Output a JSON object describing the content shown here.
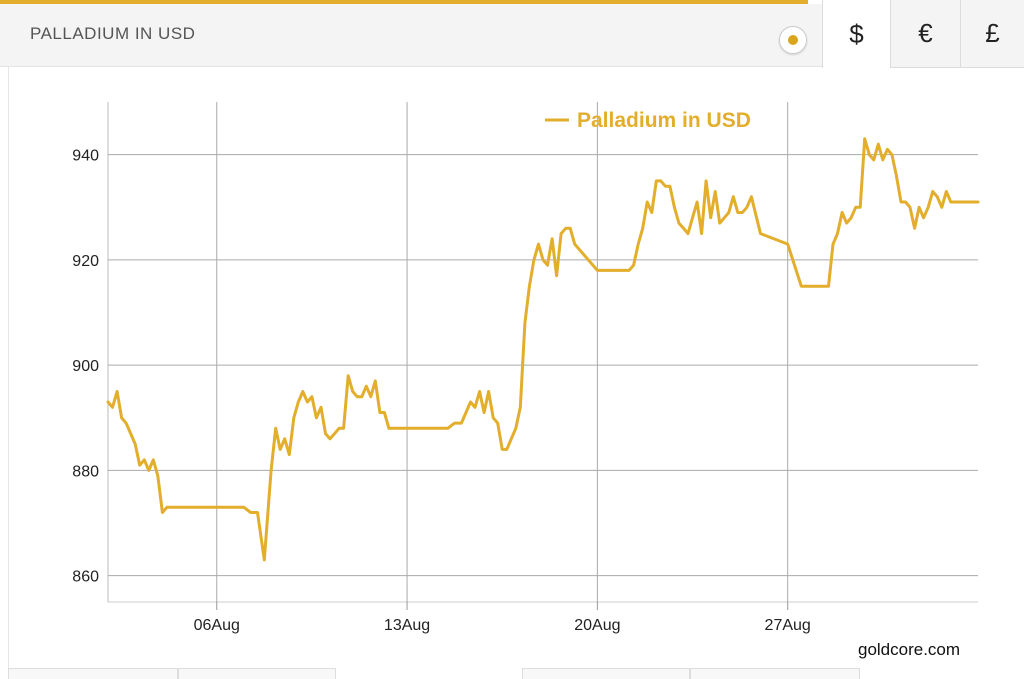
{
  "header": {
    "title": "PALLADIUM IN USD"
  },
  "currency_tabs": [
    {
      "label": "$",
      "active": true
    },
    {
      "label": "€",
      "active": false
    },
    {
      "label": "£",
      "active": false
    }
  ],
  "credit": "goldcore.com",
  "colors": {
    "series": "#e2ae2b",
    "grid": "#aaaaaa",
    "accent": "#e2ae2b"
  },
  "chart_data": {
    "type": "line",
    "title": "",
    "xlabel": "",
    "ylabel": "",
    "legend": {
      "position": "top-center",
      "entries": [
        "Palladium in USD"
      ]
    },
    "ylim": [
      855,
      950
    ],
    "xlim": [
      "2018-08-02",
      "2018-09-03"
    ],
    "yticks": [
      860,
      880,
      900,
      920,
      940
    ],
    "xticks": [
      {
        "label": "06Aug",
        "date": "2018-08-06"
      },
      {
        "label": "13Aug",
        "date": "2018-08-13"
      },
      {
        "label": "20Aug",
        "date": "2018-08-20"
      },
      {
        "label": "27Aug",
        "date": "2018-08-27"
      }
    ],
    "grid": true,
    "series": [
      {
        "name": "Palladium in USD",
        "x": [
          "2018-08-02 00:00",
          "2018-08-02 04:00",
          "2018-08-02 08:00",
          "2018-08-02 12:00",
          "2018-08-02 16:00",
          "2018-08-02 20:00",
          "2018-08-03 00:00",
          "2018-08-03 04:00",
          "2018-08-03 08:00",
          "2018-08-03 12:00",
          "2018-08-03 16:00",
          "2018-08-03 20:00",
          "2018-08-04 00:00",
          "2018-08-04 04:00",
          "2018-08-04 08:00",
          "2018-08-04 12:00",
          "2018-08-05 00:00",
          "2018-08-06 00:00",
          "2018-08-06 12:00",
          "2018-08-07 00:00",
          "2018-08-07 06:00",
          "2018-08-07 12:00",
          "2018-08-07 18:00",
          "2018-08-08 00:00",
          "2018-08-08 04:00",
          "2018-08-08 08:00",
          "2018-08-08 12:00",
          "2018-08-08 16:00",
          "2018-08-08 20:00",
          "2018-08-09 00:00",
          "2018-08-09 04:00",
          "2018-08-09 08:00",
          "2018-08-09 12:00",
          "2018-08-09 16:00",
          "2018-08-09 20:00",
          "2018-08-10 00:00",
          "2018-08-10 04:00",
          "2018-08-10 08:00",
          "2018-08-10 12:00",
          "2018-08-10 16:00",
          "2018-08-10 20:00",
          "2018-08-11 00:00",
          "2018-08-11 04:00",
          "2018-08-11 08:00",
          "2018-08-11 12:00",
          "2018-08-11 16:00",
          "2018-08-11 20:00",
          "2018-08-12 00:00",
          "2018-08-12 04:00",
          "2018-08-12 08:00",
          "2018-08-12 12:00",
          "2018-08-13 00:00",
          "2018-08-14 00:00",
          "2018-08-14 12:00",
          "2018-08-14 18:00",
          "2018-08-15 00:00",
          "2018-08-15 04:00",
          "2018-08-15 08:00",
          "2018-08-15 12:00",
          "2018-08-15 16:00",
          "2018-08-15 20:00",
          "2018-08-16 00:00",
          "2018-08-16 04:00",
          "2018-08-16 08:00",
          "2018-08-16 12:00",
          "2018-08-16 16:00",
          "2018-08-16 20:00",
          "2018-08-17 00:00",
          "2018-08-17 04:00",
          "2018-08-17 08:00",
          "2018-08-17 12:00",
          "2018-08-17 16:00",
          "2018-08-17 20:00",
          "2018-08-18 00:00",
          "2018-08-18 04:00",
          "2018-08-18 08:00",
          "2018-08-18 12:00",
          "2018-08-18 16:00",
          "2018-08-18 20:00",
          "2018-08-19 00:00",
          "2018-08-19 04:00",
          "2018-08-20 00:00",
          "2018-08-20 12:00",
          "2018-08-20 18:00",
          "2018-08-21 00:00",
          "2018-08-21 04:00",
          "2018-08-21 08:00",
          "2018-08-21 12:00",
          "2018-08-21 16:00",
          "2018-08-21 20:00",
          "2018-08-22 00:00",
          "2018-08-22 04:00",
          "2018-08-22 08:00",
          "2018-08-22 12:00",
          "2018-08-22 16:00",
          "2018-08-22 20:00",
          "2018-08-23 00:00",
          "2018-08-23 04:00",
          "2018-08-23 08:00",
          "2018-08-23 12:00",
          "2018-08-23 16:00",
          "2018-08-23 20:00",
          "2018-08-24 00:00",
          "2018-08-24 04:00",
          "2018-08-24 08:00",
          "2018-08-24 12:00",
          "2018-08-24 16:00",
          "2018-08-24 20:00",
          "2018-08-25 00:00",
          "2018-08-25 04:00",
          "2018-08-25 08:00",
          "2018-08-25 12:00",
          "2018-08-25 16:00",
          "2018-08-26 00:00",
          "2018-08-27 00:00",
          "2018-08-27 12:00",
          "2018-08-27 18:00",
          "2018-08-28 00:00",
          "2018-08-28 04:00",
          "2018-08-28 08:00",
          "2018-08-28 12:00",
          "2018-08-28 16:00",
          "2018-08-28 20:00",
          "2018-08-29 00:00",
          "2018-08-29 04:00",
          "2018-08-29 08:00",
          "2018-08-29 12:00",
          "2018-08-29 16:00",
          "2018-08-29 20:00",
          "2018-08-30 00:00",
          "2018-08-30 04:00",
          "2018-08-30 08:00",
          "2018-08-30 12:00",
          "2018-08-30 16:00",
          "2018-08-30 20:00",
          "2018-08-31 00:00",
          "2018-08-31 04:00",
          "2018-08-31 08:00",
          "2018-08-31 12:00",
          "2018-08-31 16:00",
          "2018-08-31 20:00",
          "2018-09-01 00:00",
          "2018-09-01 04:00",
          "2018-09-01 08:00",
          "2018-09-01 12:00",
          "2018-09-01 16:00",
          "2018-09-01 20:00",
          "2018-09-02 00:00",
          "2018-09-02 04:00",
          "2018-09-02 08:00",
          "2018-09-02 12:00",
          "2018-09-02 16:00",
          "2018-09-02 20:00",
          "2018-09-03 00:00"
        ],
        "values": [
          893,
          892,
          895,
          890,
          889,
          887,
          885,
          881,
          882,
          880,
          882,
          879,
          872,
          873,
          873,
          873,
          873,
          873,
          873,
          873,
          872,
          872,
          863,
          880,
          888,
          884,
          886,
          883,
          890,
          893,
          895,
          893,
          894,
          890,
          892,
          887,
          886,
          887,
          888,
          888,
          898,
          895,
          894,
          894,
          896,
          894,
          897,
          891,
          891,
          888,
          888,
          888,
          888,
          888,
          889,
          889,
          891,
          893,
          892,
          895,
          891,
          895,
          890,
          889,
          884,
          884,
          886,
          888,
          892,
          908,
          915,
          920,
          923,
          920,
          919,
          924,
          917,
          925,
          926,
          926,
          923,
          918,
          918,
          918,
          918,
          918,
          919,
          923,
          926,
          931,
          929,
          935,
          935,
          934,
          934,
          930,
          927,
          926,
          925,
          928,
          931,
          925,
          935,
          928,
          933,
          927,
          928,
          929,
          932,
          929,
          929,
          930,
          932,
          925,
          923,
          915,
          915,
          915,
          915,
          915,
          915,
          923,
          925,
          929,
          927,
          928,
          930,
          930,
          943,
          940,
          939,
          942,
          939,
          941,
          940,
          936,
          931,
          931,
          930,
          926,
          930,
          928,
          930,
          933,
          932,
          930,
          933,
          931,
          931,
          931,
          931,
          931,
          931,
          931
        ]
      }
    ]
  }
}
